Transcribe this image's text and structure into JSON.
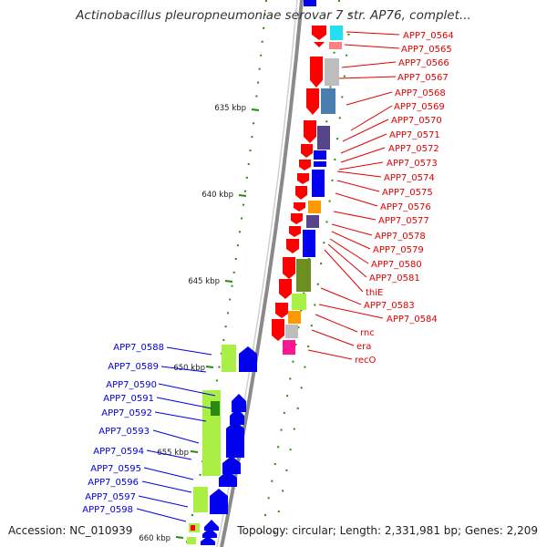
{
  "title": "Actinobacillus pleuropneumoniae serovar 7 str. AP76, complet...",
  "accession": "Accession: NC_010939",
  "topology": "Topology: circular; Length: 2,331,981 bp; Genes: 2,209",
  "ticks": [
    "635 kbp",
    "640 kbp",
    "645 kbp",
    "650 kbp",
    "655 kbp",
    "660 kbp"
  ],
  "right_labels": [
    "APP7_0564",
    "APP7_0565",
    "APP7_0566",
    "APP7_0567",
    "APP7_0568",
    "APP7_0569",
    "APP7_0570",
    "APP7_0571",
    "APP7_0572",
    "APP7_0573",
    "APP7_0574",
    "APP7_0575",
    "APP7_0576",
    "APP7_0577",
    "APP7_0578",
    "APP7_0579",
    "APP7_0580",
    "APP7_0581",
    "thiE",
    "APP7_0583",
    "APP7_0584",
    "rnc",
    "era",
    "recO"
  ],
  "left_labels": [
    "APP7_0588",
    "APP7_0589",
    "APP7_0590",
    "APP7_0591",
    "APP7_0592",
    "APP7_0593",
    "APP7_0594",
    "APP7_0595",
    "APP7_0596",
    "APP7_0597",
    "APP7_0598"
  ],
  "colors": {
    "red": "#ff0000",
    "blue": "#0000ee",
    "lime": "#aaf044",
    "green": "#2a8a10",
    "olive": "#6d8f22",
    "cyan": "#22e0f0",
    "orange": "#ff9900",
    "magenta": "#ff1493",
    "grey": "#bdbdbd",
    "steel": "#4a7db0",
    "purple": "#55448a",
    "pink": "#ff8080",
    "right_label": "#e00000",
    "left_label": "#0000dd",
    "backbone": "#8a8a8a"
  }
}
